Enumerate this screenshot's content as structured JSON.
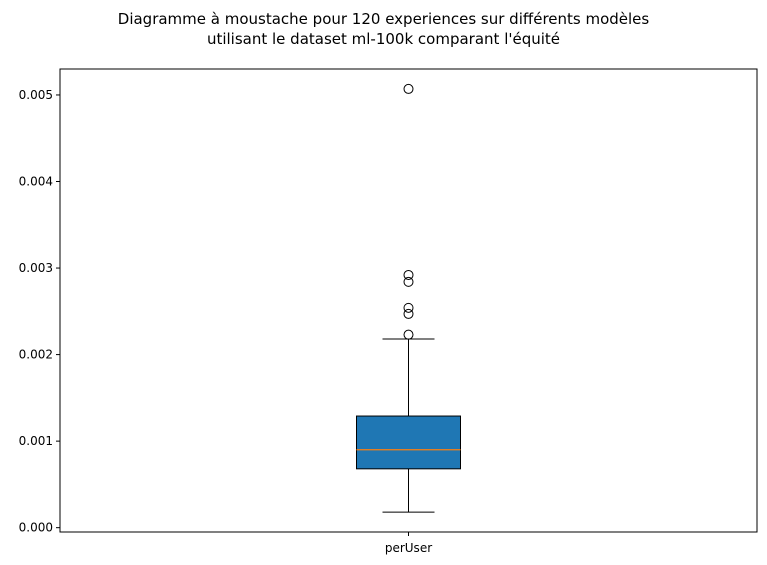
{
  "chart_data": {
    "type": "boxplot",
    "title": "Diagramme à moustache pour 120 experiences sur différents modèles utilisant le dataset ml-100k comparant l'équité",
    "title_lines": [
      "Diagramme à moustache pour 120 experiences sur différents modèles",
      "utilisant le dataset ml-100k comparant l'équité"
    ],
    "xlabel": "",
    "ylabel": "",
    "categories": [
      "perUser"
    ],
    "ylim": [
      -5e-05,
      0.0053
    ],
    "yticks": [
      0.0,
      0.001,
      0.002,
      0.003,
      0.004,
      0.005
    ],
    "ytick_labels": [
      "0.000",
      "0.001",
      "0.002",
      "0.003",
      "0.004",
      "0.005"
    ],
    "grid": false,
    "boxes": [
      {
        "category": "perUser",
        "whisker_low": 0.00018,
        "q1": 0.00068,
        "median": 0.0009,
        "q3": 0.00129,
        "whisker_high": 0.00218,
        "outliers": [
          0.00223,
          0.00247,
          0.00254,
          0.00284,
          0.00292,
          0.00507
        ]
      }
    ],
    "colors": {
      "box_fill": "#1f77b4",
      "median": "#ff7f0e",
      "lines": "#000000"
    }
  }
}
